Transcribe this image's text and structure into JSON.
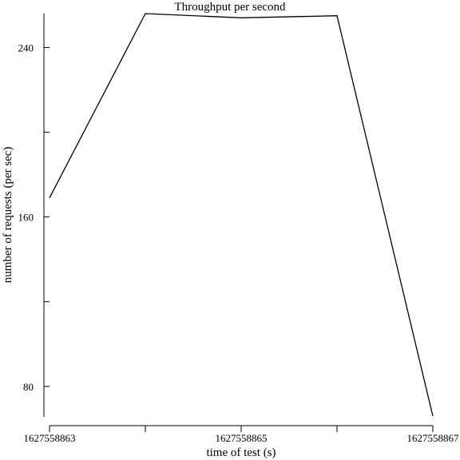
{
  "chart_data": {
    "type": "line",
    "title": "Throughput per second",
    "xlabel": "time of test (s)",
    "ylabel": "number of requests (per sec)",
    "x": [
      1627558863,
      1627558864,
      1627558865,
      1627558866,
      1627558867
    ],
    "y": [
      169,
      256,
      254,
      255,
      66
    ],
    "xlim": [
      1627558863,
      1627558867
    ],
    "ylim": [
      66,
      256
    ],
    "x_ticks": [
      1627558863,
      1627558864,
      1627558865,
      1627558866,
      1627558867
    ],
    "x_tick_labels": [
      "1627558863",
      "",
      "1627558865",
      "",
      "1627558867"
    ],
    "y_ticks": [
      80,
      120,
      160,
      200,
      240
    ],
    "y_tick_labels": [
      "80",
      "",
      "160",
      "",
      "240"
    ],
    "grid": false,
    "line_color": "#000000"
  }
}
